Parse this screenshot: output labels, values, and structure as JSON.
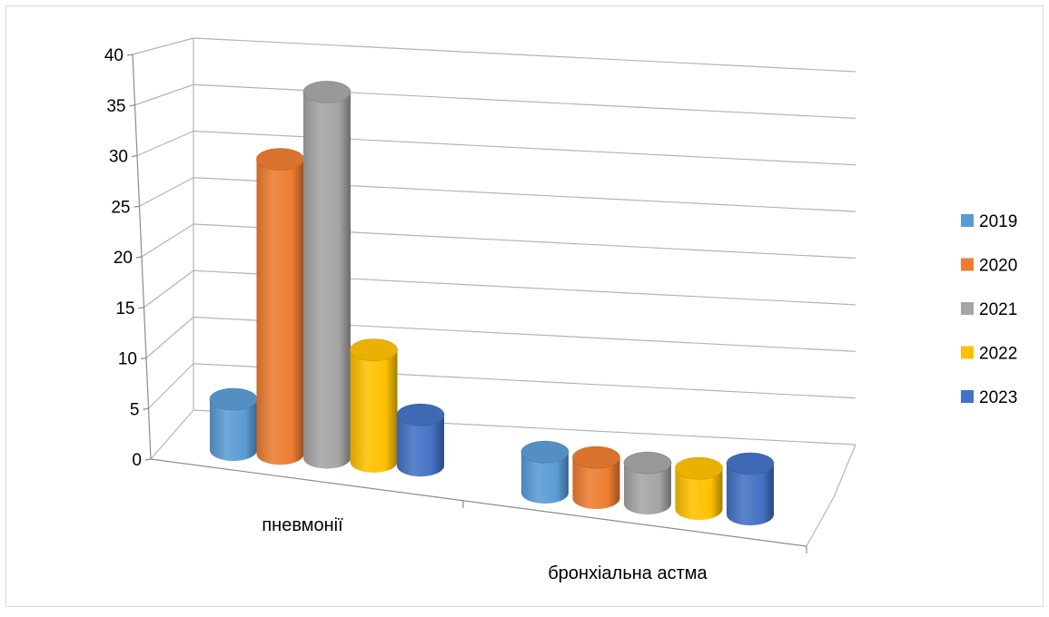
{
  "chart_data": {
    "type": "bar",
    "style": "3d-cylinder",
    "title": "",
    "xlabel": "",
    "ylabel": "",
    "categories": [
      "пневмонії",
      "бронхіальна астма"
    ],
    "ylim": [
      0,
      40
    ],
    "yticks": [
      0,
      5,
      10,
      15,
      20,
      25,
      30,
      35,
      40
    ],
    "grid": true,
    "legend_position": "right",
    "series": [
      {
        "name": "2019",
        "color": "#5b9bd5",
        "values": [
          5,
          4
        ]
      },
      {
        "name": "2020",
        "color": "#ed7d31",
        "values": [
          29,
          4
        ]
      },
      {
        "name": "2021",
        "color": "#a5a5a5",
        "values": [
          36,
          4
        ]
      },
      {
        "name": "2022",
        "color": "#ffc000",
        "values": [
          11,
          4
        ]
      },
      {
        "name": "2023",
        "color": "#4472c4",
        "values": [
          5,
          5
        ]
      }
    ]
  }
}
